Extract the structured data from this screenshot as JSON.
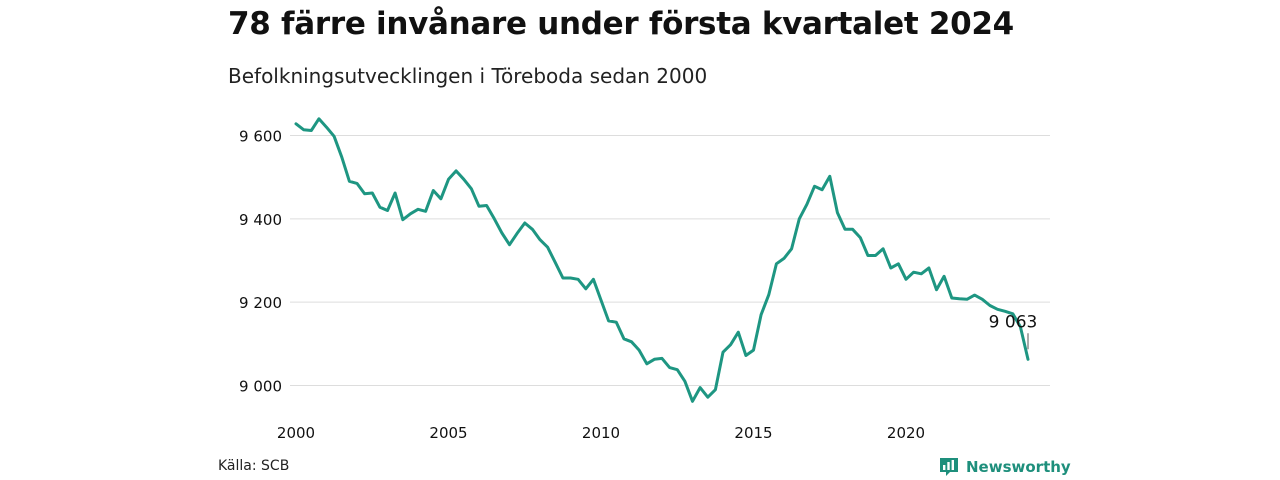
{
  "header": {
    "title": "78 färre invånare under första kvartalet 2024",
    "subtitle": "Befolkningsutvecklingen i Töreboda sedan 2000"
  },
  "footer": {
    "source": "Källa: SCB",
    "brand": "Newsworthy"
  },
  "colors": {
    "line": "#1e9682",
    "grid": "#dddddd",
    "brand": "#1e8f7c"
  },
  "icons": {
    "brand_logo": "newsworthy-logo-icon"
  },
  "chart_data": {
    "type": "line",
    "title": "78 färre invånare under första kvartalet 2024",
    "subtitle": "Befolkningsutvecklingen i Töreboda sedan 2000",
    "xlabel": "",
    "ylabel": "",
    "xlim": [
      2000,
      2024
    ],
    "ylim": [
      8935,
      9665
    ],
    "x_ticks": [
      2000,
      2005,
      2010,
      2015,
      2020
    ],
    "x_tick_labels": [
      "2000",
      "2005",
      "2010",
      "2015",
      "2020"
    ],
    "y_ticks": [
      9000,
      9200,
      9400,
      9600
    ],
    "y_tick_labels": [
      "9 000",
      "9 200",
      "9 400",
      "9 600"
    ],
    "grid": "horizontal",
    "end_label": "9 063",
    "series": [
      {
        "x": [
          2000.0,
          2000.25,
          2000.5,
          2000.75,
          2001.0,
          2001.25,
          2001.5,
          2001.75,
          2002.0,
          2002.25,
          2002.5,
          2002.75,
          2003.0,
          2003.25,
          2003.5,
          2003.75,
          2004.0,
          2004.25,
          2004.5,
          2004.75,
          2005.0,
          2005.25,
          2005.5,
          2005.75,
          2006.0,
          2006.25,
          2006.5,
          2006.75,
          2007.0,
          2007.25,
          2007.5,
          2007.75,
          2008.0,
          2008.25,
          2008.5,
          2008.75,
          2009.0,
          2009.25,
          2009.5,
          2009.75,
          2010.0,
          2010.25,
          2010.5,
          2010.75,
          2011.0,
          2011.25,
          2011.5,
          2011.75,
          2012.0,
          2012.25,
          2012.5,
          2012.75,
          2013.0,
          2013.25,
          2013.5,
          2013.75,
          2014.0,
          2014.25,
          2014.5,
          2014.75,
          2015.0,
          2015.25,
          2015.5,
          2015.75,
          2016.0,
          2016.25,
          2016.5,
          2016.75,
          2017.0,
          2017.25,
          2017.5,
          2017.75,
          2018.0,
          2018.25,
          2018.5,
          2018.75,
          2019.0,
          2019.25,
          2019.5,
          2019.75,
          2020.0,
          2020.25,
          2020.5,
          2020.75,
          2021.0,
          2021.25,
          2021.5,
          2021.75,
          2022.0,
          2022.25,
          2022.5,
          2022.75,
          2023.0,
          2023.25,
          2023.5,
          2023.75,
          2024.0
        ],
        "values": [
          9628,
          9614,
          9612,
          9640,
          9620,
          9598,
          9548,
          9490,
          9485,
          9460,
          9462,
          9428,
          9420,
          9462,
          9398,
          9412,
          9423,
          9418,
          9468,
          9448,
          9495,
          9515,
          9495,
          9472,
          9430,
          9432,
          9400,
          9366,
          9338,
          9365,
          9390,
          9375,
          9350,
          9332,
          9295,
          9258,
          9258,
          9255,
          9232,
          9255,
          9205,
          9155,
          9152,
          9112,
          9105,
          9085,
          9052,
          9063,
          9065,
          9043,
          9038,
          9010,
          8962,
          8995,
          8972,
          8990,
          9080,
          9098,
          9128,
          9072,
          9085,
          9170,
          9218,
          9292,
          9305,
          9328,
          9400,
          9435,
          9478,
          9470,
          9502,
          9415,
          9375,
          9375,
          9355,
          9312,
          9312,
          9328,
          9282,
          9292,
          9255,
          9272,
          9268,
          9282,
          9230,
          9262,
          9210,
          9208,
          9207,
          9217,
          9207,
          9192,
          9183,
          9178,
          9172,
          9141,
          9063
        ]
      }
    ]
  }
}
